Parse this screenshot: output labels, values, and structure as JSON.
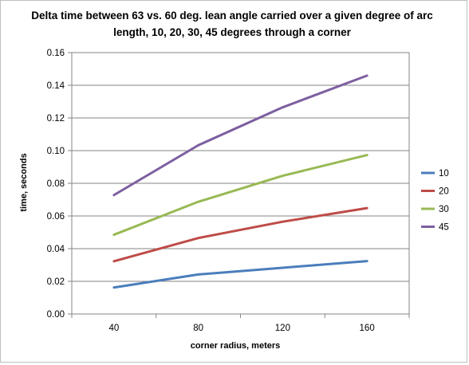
{
  "chart_data": {
    "type": "line",
    "title": "Delta time between 63 vs. 60 deg. lean angle carried over a given degree of arc length, 10, 20, 30, 45 degrees through a corner",
    "xlabel": "corner radius,  meters",
    "ylabel": "time, seconds",
    "categories": [
      "40",
      "80",
      "120",
      "160"
    ],
    "ylim": [
      0,
      0.16
    ],
    "yticks": [
      "0.00",
      "0.02",
      "0.04",
      "0.06",
      "0.08",
      "0.10",
      "0.12",
      "0.14",
      "0.16"
    ],
    "ytick_values": [
      0,
      0.02,
      0.04,
      0.06,
      0.08,
      0.1,
      0.12,
      0.14,
      0.16
    ],
    "grid": true,
    "legend_position": "right",
    "series": [
      {
        "name": "10",
        "color": "#4a7ebb",
        "values": [
          0.0162,
          0.0242,
          0.0283,
          0.0324
        ]
      },
      {
        "name": "20",
        "color": "#be4b48",
        "values": [
          0.0323,
          0.0465,
          0.0565,
          0.0648
        ]
      },
      {
        "name": "30",
        "color": "#98b954",
        "values": [
          0.0485,
          0.0687,
          0.0846,
          0.0973
        ]
      },
      {
        "name": "45",
        "color": "#7d5fa0",
        "values": [
          0.0728,
          0.1033,
          0.1265,
          0.1459
        ]
      }
    ]
  }
}
